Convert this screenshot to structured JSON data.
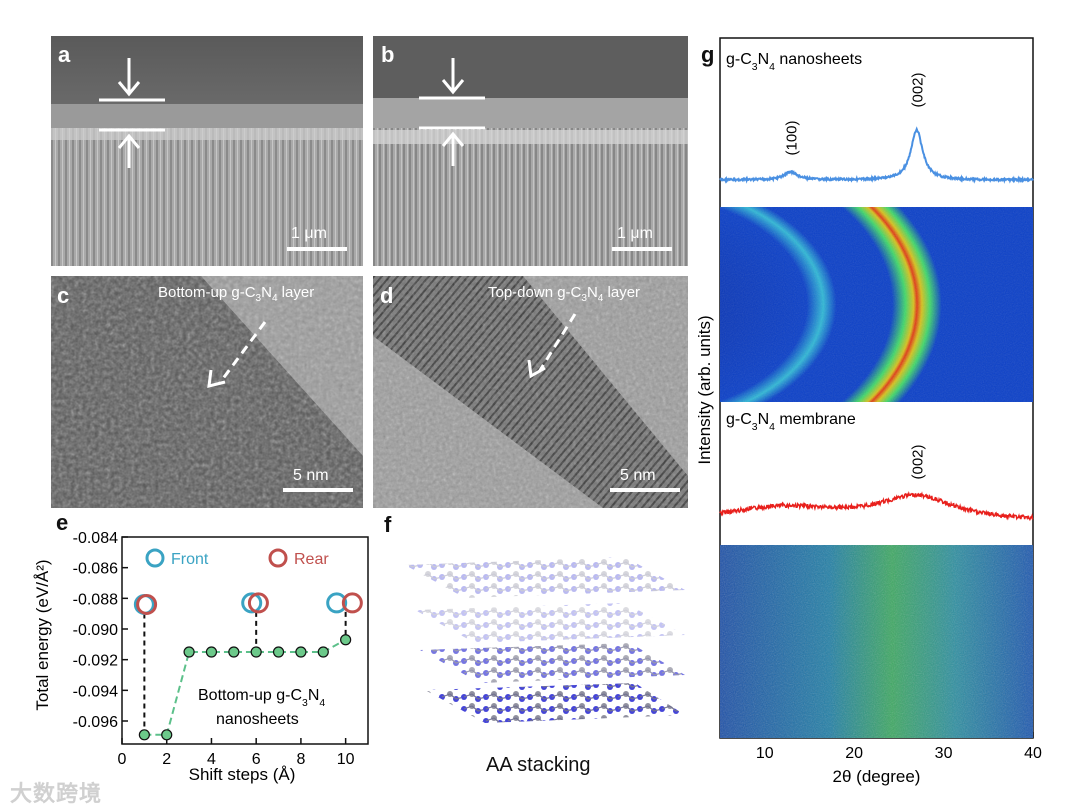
{
  "panels": {
    "a": {
      "letter": "a",
      "scale_label": "1 μm"
    },
    "b": {
      "letter": "b",
      "scale_label": "1 μm"
    },
    "c": {
      "letter": "c",
      "caption_prefix": "Bottom-up g-C",
      "caption_sub1": "3",
      "caption_mid": "N",
      "caption_sub2": "4",
      "caption_suffix": " layer",
      "scale_label": "5 nm"
    },
    "d": {
      "letter": "d",
      "caption_prefix": "Top-down g-C",
      "caption_sub1": "3",
      "caption_mid": "N",
      "caption_sub2": "4",
      "caption_suffix": " layer",
      "scale_label": "5 nm"
    },
    "e": {
      "letter": "e"
    },
    "f": {
      "letter": "f",
      "caption": "AA stacking"
    },
    "g": {
      "letter": "g"
    }
  },
  "chart_data": [
    {
      "type": "scatter",
      "panel": "e",
      "xlabel": "Shift steps (Å)",
      "ylabel": "Total energy (eV/Å²)",
      "xlim": [
        0,
        11
      ],
      "ylim": [
        -0.0975,
        -0.084
      ],
      "xticks": [
        "0",
        "2",
        "4",
        "6",
        "8",
        "10"
      ],
      "yticks": [
        "-0.084",
        "-0.086",
        "-0.088",
        "-0.090",
        "-0.092",
        "-0.094",
        "-0.096"
      ],
      "legend": [
        {
          "name": "Front",
          "color": "#3aa3c3"
        },
        {
          "name": "Rear",
          "color": "#c0504d"
        }
      ],
      "annotation_line1": "Bottom-up  g-C",
      "annotation_sub1": "3",
      "annotation_mid": "N",
      "annotation_sub2": "4",
      "annotation_line2": "nanosheets",
      "series": [
        {
          "name": "steps",
          "x": [
            1,
            2,
            3,
            4,
            5,
            6,
            7,
            8,
            9,
            10
          ],
          "y": [
            -0.0969,
            -0.0969,
            -0.0915,
            -0.0915,
            -0.0915,
            -0.0915,
            -0.0915,
            -0.0915,
            -0.0915,
            -0.0907
          ]
        }
      ],
      "front": {
        "x": [
          1,
          5.8,
          9.6
        ],
        "y": [
          -0.0884,
          -0.0883,
          -0.0883
        ]
      },
      "rear": {
        "x": [
          1.1,
          6.1,
          10.3
        ],
        "y": [
          -0.0884,
          -0.0883,
          -0.0883
        ]
      },
      "drops": [
        1,
        6,
        10
      ]
    },
    {
      "type": "line",
      "panel": "g",
      "xlabel": "2θ (degree)",
      "ylabel": "Intensity (arb. units)",
      "xlim": [
        5,
        40
      ],
      "xticks": [
        "10",
        "20",
        "30",
        "40"
      ],
      "series": [
        {
          "name_prefix": "g-C",
          "sub1": "3",
          "mid": "N",
          "sub2": "4",
          "name_suffix": " nanosheets",
          "color": "#4a90e2",
          "peaks": [
            {
              "label": "(100)",
              "x": 12.9
            },
            {
              "label": "(002)",
              "x": 27.0
            }
          ]
        },
        {
          "name_prefix": "g-C",
          "sub1": "3",
          "mid": "N",
          "sub2": "4",
          "name_suffix": " membrane",
          "color": "#e8201c",
          "peaks": [
            {
              "label": "(002)",
              "x": 27.0
            }
          ]
        }
      ]
    }
  ],
  "watermark": "大数跨境"
}
